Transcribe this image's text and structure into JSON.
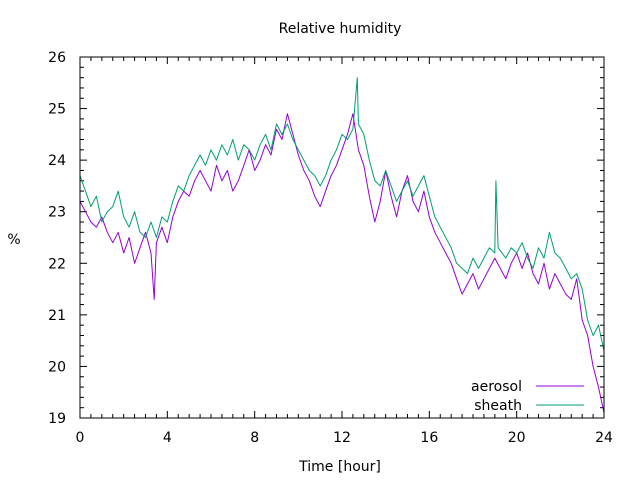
{
  "chart_data": {
    "type": "line",
    "title": "Relative humidity",
    "xlabel": "Time [hour]",
    "ylabel": "%",
    "xlim": [
      0,
      24
    ],
    "ylim": [
      19,
      26
    ],
    "xticks": [
      0,
      4,
      8,
      12,
      16,
      20,
      24
    ],
    "yticks": [
      19,
      20,
      21,
      22,
      23,
      24,
      25,
      26
    ],
    "grid": false,
    "legend_position": "bottom-right",
    "series": [
      {
        "name": "aerosol",
        "color": "#9400d3",
        "points": [
          [
            0.0,
            23.2
          ],
          [
            0.25,
            23.0
          ],
          [
            0.5,
            22.8
          ],
          [
            0.75,
            22.7
          ],
          [
            1.0,
            22.9
          ],
          [
            1.25,
            22.6
          ],
          [
            1.5,
            22.4
          ],
          [
            1.75,
            22.6
          ],
          [
            2.0,
            22.2
          ],
          [
            2.25,
            22.5
          ],
          [
            2.5,
            22.0
          ],
          [
            2.75,
            22.3
          ],
          [
            3.0,
            22.6
          ],
          [
            3.25,
            22.2
          ],
          [
            3.4,
            21.3
          ],
          [
            3.5,
            22.4
          ],
          [
            3.75,
            22.7
          ],
          [
            4.0,
            22.4
          ],
          [
            4.25,
            22.9
          ],
          [
            4.5,
            23.2
          ],
          [
            4.75,
            23.4
          ],
          [
            5.0,
            23.3
          ],
          [
            5.25,
            23.6
          ],
          [
            5.5,
            23.8
          ],
          [
            5.75,
            23.6
          ],
          [
            6.0,
            23.4
          ],
          [
            6.25,
            23.9
          ],
          [
            6.5,
            23.6
          ],
          [
            6.75,
            23.8
          ],
          [
            7.0,
            23.4
          ],
          [
            7.25,
            23.6
          ],
          [
            7.5,
            23.9
          ],
          [
            7.75,
            24.2
          ],
          [
            8.0,
            23.8
          ],
          [
            8.25,
            24.0
          ],
          [
            8.5,
            24.3
          ],
          [
            8.75,
            24.1
          ],
          [
            9.0,
            24.6
          ],
          [
            9.25,
            24.4
          ],
          [
            9.5,
            24.9
          ],
          [
            9.75,
            24.5
          ],
          [
            10.0,
            24.1
          ],
          [
            10.25,
            23.8
          ],
          [
            10.5,
            23.6
          ],
          [
            10.75,
            23.3
          ],
          [
            11.0,
            23.1
          ],
          [
            11.25,
            23.4
          ],
          [
            11.5,
            23.7
          ],
          [
            11.75,
            23.9
          ],
          [
            12.0,
            24.2
          ],
          [
            12.25,
            24.5
          ],
          [
            12.5,
            24.9
          ],
          [
            12.75,
            24.2
          ],
          [
            13.0,
            23.9
          ],
          [
            13.25,
            23.3
          ],
          [
            13.5,
            22.8
          ],
          [
            13.75,
            23.2
          ],
          [
            14.0,
            23.8
          ],
          [
            14.25,
            23.3
          ],
          [
            14.5,
            22.9
          ],
          [
            14.75,
            23.4
          ],
          [
            15.0,
            23.7
          ],
          [
            15.25,
            23.2
          ],
          [
            15.5,
            23.0
          ],
          [
            15.75,
            23.4
          ],
          [
            16.0,
            22.9
          ],
          [
            16.25,
            22.6
          ],
          [
            16.5,
            22.4
          ],
          [
            16.75,
            22.2
          ],
          [
            17.0,
            22.0
          ],
          [
            17.25,
            21.7
          ],
          [
            17.5,
            21.4
          ],
          [
            17.75,
            21.6
          ],
          [
            18.0,
            21.8
          ],
          [
            18.25,
            21.5
          ],
          [
            18.5,
            21.7
          ],
          [
            18.75,
            21.9
          ],
          [
            19.0,
            22.1
          ],
          [
            19.25,
            21.9
          ],
          [
            19.5,
            21.7
          ],
          [
            19.75,
            22.0
          ],
          [
            20.0,
            22.2
          ],
          [
            20.25,
            21.9
          ],
          [
            20.5,
            22.2
          ],
          [
            20.75,
            21.8
          ],
          [
            21.0,
            21.6
          ],
          [
            21.25,
            22.0
          ],
          [
            21.5,
            21.5
          ],
          [
            21.75,
            21.8
          ],
          [
            22.0,
            21.6
          ],
          [
            22.25,
            21.4
          ],
          [
            22.5,
            21.3
          ],
          [
            22.75,
            21.7
          ],
          [
            23.0,
            20.9
          ],
          [
            23.25,
            20.6
          ],
          [
            23.5,
            20.0
          ],
          [
            23.75,
            19.6
          ],
          [
            24.0,
            19.1
          ]
        ]
      },
      {
        "name": "sheath",
        "color": "#009e73",
        "points": [
          [
            0.0,
            23.7
          ],
          [
            0.25,
            23.4
          ],
          [
            0.5,
            23.1
          ],
          [
            0.75,
            23.3
          ],
          [
            1.0,
            22.8
          ],
          [
            1.25,
            23.0
          ],
          [
            1.5,
            23.1
          ],
          [
            1.75,
            23.4
          ],
          [
            2.0,
            22.9
          ],
          [
            2.25,
            22.7
          ],
          [
            2.5,
            23.0
          ],
          [
            2.75,
            22.6
          ],
          [
            3.0,
            22.5
          ],
          [
            3.25,
            22.8
          ],
          [
            3.5,
            22.5
          ],
          [
            3.75,
            22.9
          ],
          [
            4.0,
            22.8
          ],
          [
            4.25,
            23.2
          ],
          [
            4.5,
            23.5
          ],
          [
            4.75,
            23.4
          ],
          [
            5.0,
            23.7
          ],
          [
            5.25,
            23.9
          ],
          [
            5.5,
            24.1
          ],
          [
            5.75,
            23.9
          ],
          [
            6.0,
            24.2
          ],
          [
            6.25,
            24.0
          ],
          [
            6.5,
            24.3
          ],
          [
            6.75,
            24.1
          ],
          [
            7.0,
            24.4
          ],
          [
            7.25,
            24.0
          ],
          [
            7.5,
            24.3
          ],
          [
            7.75,
            24.2
          ],
          [
            8.0,
            24.0
          ],
          [
            8.25,
            24.3
          ],
          [
            8.5,
            24.5
          ],
          [
            8.75,
            24.2
          ],
          [
            9.0,
            24.7
          ],
          [
            9.25,
            24.5
          ],
          [
            9.5,
            24.7
          ],
          [
            9.75,
            24.4
          ],
          [
            10.0,
            24.2
          ],
          [
            10.25,
            24.0
          ],
          [
            10.5,
            23.8
          ],
          [
            10.75,
            23.7
          ],
          [
            11.0,
            23.5
          ],
          [
            11.25,
            23.7
          ],
          [
            11.5,
            24.0
          ],
          [
            11.75,
            24.2
          ],
          [
            12.0,
            24.5
          ],
          [
            12.25,
            24.4
          ],
          [
            12.5,
            24.6
          ],
          [
            12.7,
            25.6
          ],
          [
            12.75,
            24.7
          ],
          [
            13.0,
            24.5
          ],
          [
            13.25,
            24.0
          ],
          [
            13.5,
            23.6
          ],
          [
            13.75,
            23.5
          ],
          [
            14.0,
            23.8
          ],
          [
            14.25,
            23.5
          ],
          [
            14.5,
            23.2
          ],
          [
            14.75,
            23.4
          ],
          [
            15.0,
            23.6
          ],
          [
            15.25,
            23.3
          ],
          [
            15.5,
            23.5
          ],
          [
            15.75,
            23.7
          ],
          [
            16.0,
            23.3
          ],
          [
            16.25,
            22.9
          ],
          [
            16.5,
            22.7
          ],
          [
            16.75,
            22.5
          ],
          [
            17.0,
            22.3
          ],
          [
            17.25,
            22.0
          ],
          [
            17.5,
            21.9
          ],
          [
            17.75,
            21.8
          ],
          [
            18.0,
            22.1
          ],
          [
            18.25,
            21.9
          ],
          [
            18.5,
            22.1
          ],
          [
            18.75,
            22.3
          ],
          [
            19.0,
            22.2
          ],
          [
            19.05,
            23.6
          ],
          [
            19.15,
            22.3
          ],
          [
            19.5,
            22.1
          ],
          [
            19.75,
            22.3
          ],
          [
            20.0,
            22.2
          ],
          [
            20.25,
            22.4
          ],
          [
            20.5,
            22.1
          ],
          [
            20.75,
            21.9
          ],
          [
            21.0,
            22.3
          ],
          [
            21.25,
            22.1
          ],
          [
            21.5,
            22.6
          ],
          [
            21.75,
            22.2
          ],
          [
            22.0,
            22.1
          ],
          [
            22.25,
            21.9
          ],
          [
            22.5,
            21.7
          ],
          [
            22.75,
            21.8
          ],
          [
            23.0,
            21.5
          ],
          [
            23.25,
            20.9
          ],
          [
            23.5,
            20.6
          ],
          [
            23.75,
            20.8
          ],
          [
            24.0,
            20.3
          ]
        ]
      }
    ]
  }
}
